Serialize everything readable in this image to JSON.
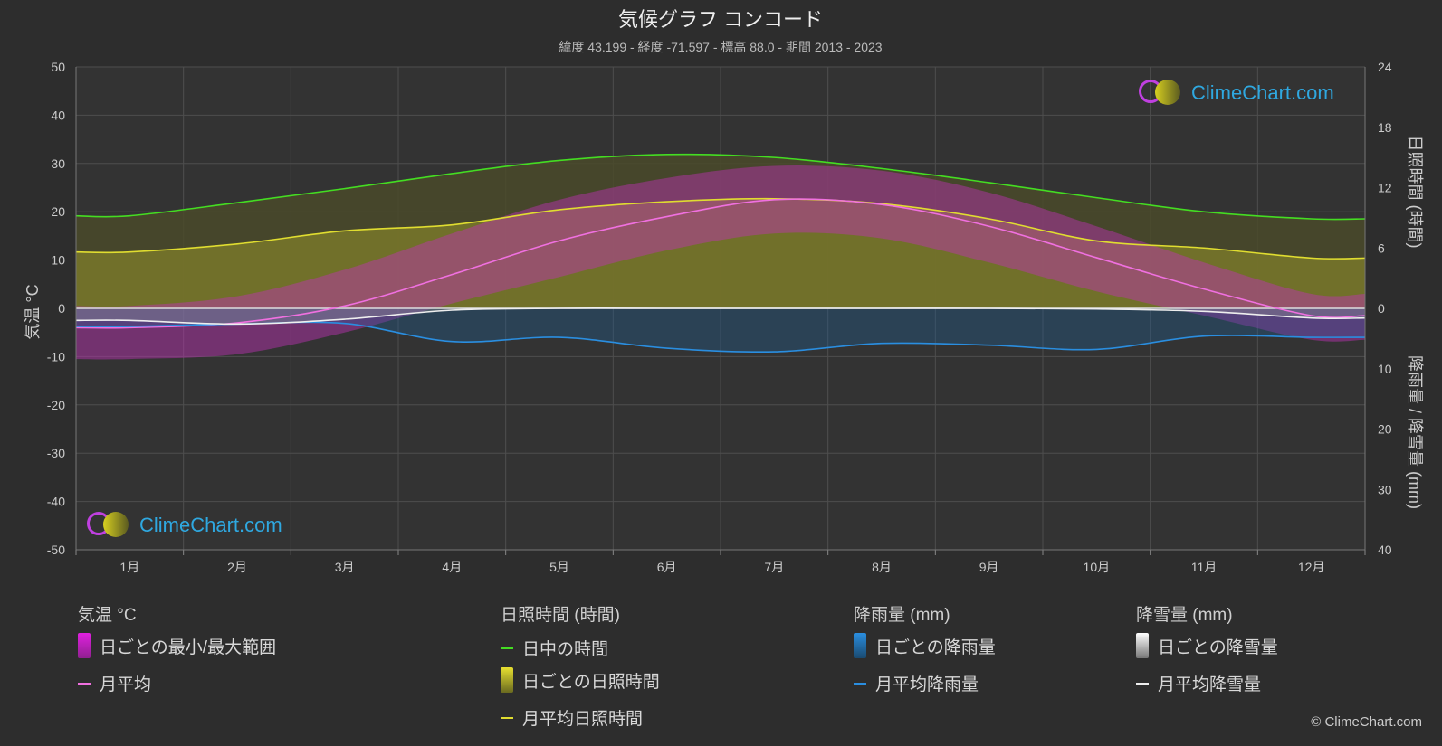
{
  "title": "気候グラフ コンコード",
  "subtitle": "緯度 43.199 - 経度 -71.597 - 標高 88.0 - 期間 2013 - 2023",
  "brand": {
    "name": "ClimeChart.com",
    "copyright": "© ClimeChart.com"
  },
  "colors": {
    "background": "#2d2d2d",
    "daylight": "#44dd22",
    "sunshine_line": "#e0dd30",
    "temp_mean": "#f070e0",
    "rain_line": "#2a8ee0",
    "snow_line": "#eeeeee",
    "temp_range": "#e020e0",
    "rain_bars": "#1e5f95",
    "snow_bars": "#888888"
  },
  "legend": {
    "temperature": {
      "heading": "気温 °C",
      "range": "日ごとの最小/最大範囲",
      "mean": "月平均"
    },
    "sunshine": {
      "heading": "日照時間 (時間)",
      "daylight": "日中の時間",
      "daily": "日ごとの日照時間",
      "mean": "月平均日照時間"
    },
    "rain": {
      "heading": "降雨量 (mm)",
      "daily": "日ごとの降雨量",
      "mean": "月平均降雨量"
    },
    "snow": {
      "heading": "降雪量 (mm)",
      "daily": "日ごとの降雪量",
      "mean": "月平均降雪量"
    }
  },
  "chart_data": {
    "type": "line",
    "categories": [
      "1月",
      "2月",
      "3月",
      "4月",
      "5月",
      "6月",
      "7月",
      "8月",
      "9月",
      "10月",
      "11月",
      "12月"
    ],
    "left_axis": {
      "label": "気温 °C",
      "ylim": [
        -50,
        50
      ],
      "ticks": [
        50,
        40,
        30,
        20,
        10,
        0,
        -10,
        -20,
        -30,
        -40,
        -50
      ]
    },
    "right_axis_top": {
      "label": "日照時間 (時間)",
      "ylim": [
        0,
        24
      ],
      "ticks": [
        24,
        18,
        12,
        6,
        0
      ]
    },
    "right_axis_bottom": {
      "label": "降雨量 / 降雪量 (mm)",
      "ylim": [
        0,
        40
      ],
      "ticks": [
        10,
        20,
        30,
        40
      ]
    },
    "grid": true,
    "series": [
      {
        "name": "日中の時間",
        "axis": "sunshine_hours",
        "values": [
          9.2,
          10.5,
          11.9,
          13.4,
          14.7,
          15.3,
          15.0,
          13.9,
          12.5,
          11.0,
          9.6,
          8.9
        ]
      },
      {
        "name": "月平均日照時間",
        "axis": "sunshine_hours",
        "values": [
          5.6,
          6.4,
          7.7,
          8.3,
          9.8,
          10.6,
          10.9,
          10.4,
          8.9,
          6.7,
          6.0,
          5.0
        ]
      },
      {
        "name": "月平均",
        "axis": "temperature_c",
        "values": [
          -4.0,
          -3.0,
          0.5,
          7.0,
          14.0,
          19.0,
          22.5,
          21.5,
          17.0,
          10.5,
          4.0,
          -1.5
        ]
      },
      {
        "name": "月平均降雨量",
        "axis": "precip_mm",
        "values": [
          3.0,
          2.6,
          2.5,
          5.5,
          4.8,
          6.6,
          7.2,
          5.8,
          6.1,
          6.8,
          4.6,
          4.8
        ]
      },
      {
        "name": "月平均降雪量",
        "axis": "precip_mm",
        "values": [
          2.0,
          2.6,
          1.8,
          0.3,
          0.0,
          0.0,
          0.0,
          0.0,
          0.0,
          0.1,
          0.5,
          1.6
        ]
      }
    ],
    "ranges": {
      "temp_max": [
        0.5,
        2.5,
        8.0,
        15.5,
        22.5,
        27.0,
        29.5,
        28.5,
        24.0,
        17.0,
        9.5,
        3.0
      ],
      "temp_min": [
        -10.5,
        -9.5,
        -5.0,
        1.0,
        6.5,
        12.0,
        15.5,
        14.5,
        9.5,
        3.5,
        -1.5,
        -6.5
      ]
    }
  }
}
